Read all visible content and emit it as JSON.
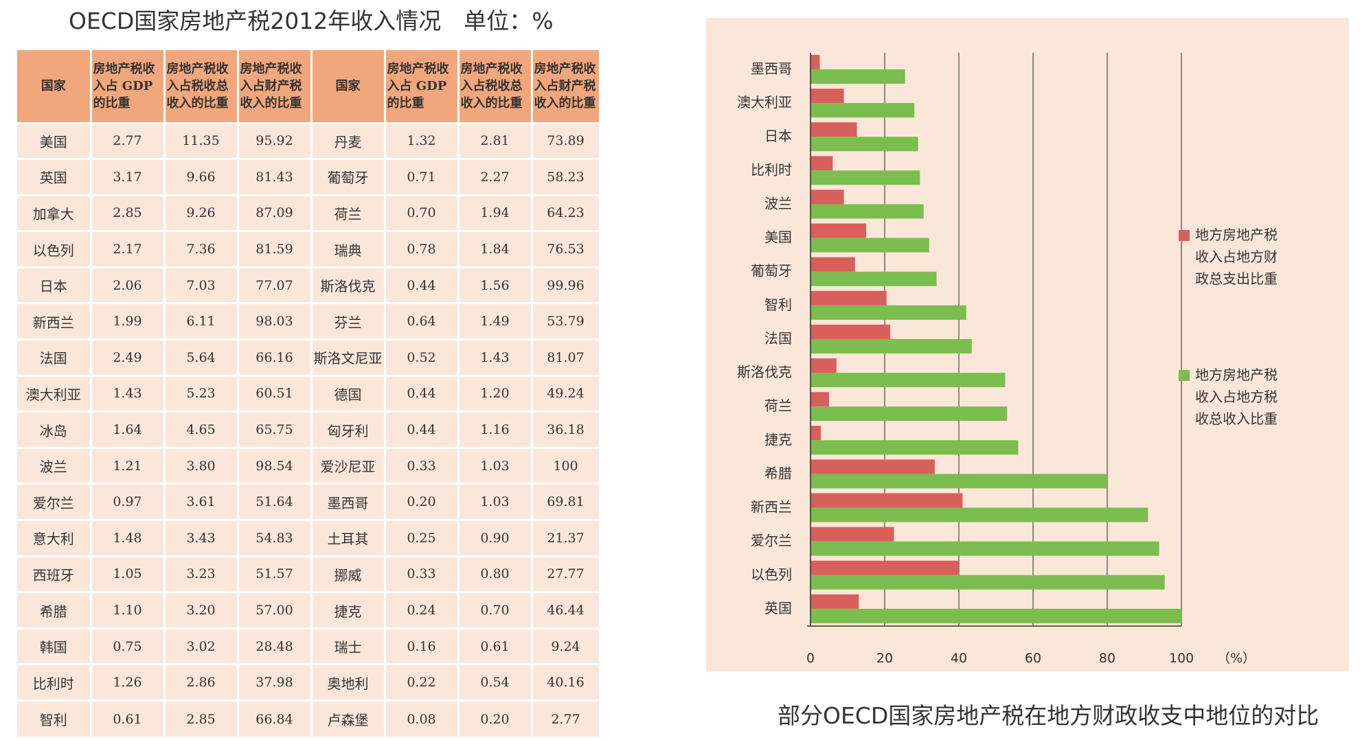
{
  "table": {
    "title": "OECD国家房地产税2012年收入情况　单位：%",
    "headers": [
      "国家",
      "房地产税收入占 GDP 的比重",
      "房地产税收入占税收总收入的比重",
      "房地产税收入占财产税收入的比重",
      "国家",
      "房地产税收入占 GDP 的比重",
      "房地产税收入占税收总收入的比重",
      "房地产税收入占财产税收入的比重"
    ],
    "header_lines": [
      [
        "国家"
      ],
      [
        "房地产税收",
        "入占 GDP",
        "的比重"
      ],
      [
        "房地产税收",
        "入占税收总",
        "收入的比重"
      ],
      [
        "房地产税收",
        "入占财产税",
        "收入的比重"
      ],
      [
        "国家"
      ],
      [
        "房地产税收",
        "入占 GDP",
        "的比重"
      ],
      [
        "房地产税收",
        "入占税收总",
        "收入的比重"
      ],
      [
        "房地产税收",
        "入占财产税",
        "收入的比重"
      ]
    ],
    "rows": [
      [
        "美国",
        "2.77",
        "11.35",
        "95.92",
        "丹麦",
        "1.32",
        "2.81",
        "73.89"
      ],
      [
        "英国",
        "3.17",
        "9.66",
        "81.43",
        "葡萄牙",
        "0.71",
        "2.27",
        "58.23"
      ],
      [
        "加拿大",
        "2.85",
        "9.26",
        "87.09",
        "荷兰",
        "0.70",
        "1.94",
        "64.23"
      ],
      [
        "以色列",
        "2.17",
        "7.36",
        "81.59",
        "瑞典",
        "0.78",
        "1.84",
        "76.53"
      ],
      [
        "日本",
        "2.06",
        "7.03",
        "77.07",
        "斯洛伐克",
        "0.44",
        "1.56",
        "99.96"
      ],
      [
        "新西兰",
        "1.99",
        "6.11",
        "98.03",
        "芬兰",
        "0.64",
        "1.49",
        "53.79"
      ],
      [
        "法国",
        "2.49",
        "5.64",
        "66.16",
        "斯洛文尼亚",
        "0.52",
        "1.43",
        "81.07"
      ],
      [
        "澳大利亚",
        "1.43",
        "5.23",
        "60.51",
        "德国",
        "0.44",
        "1.20",
        "49.24"
      ],
      [
        "冰岛",
        "1.64",
        "4.65",
        "65.75",
        "匈牙利",
        "0.44",
        "1.16",
        "36.18"
      ],
      [
        "波兰",
        "1.21",
        "3.80",
        "98.54",
        "爱沙尼亚",
        "0.33",
        "1.03",
        "100"
      ],
      [
        "爱尔兰",
        "0.97",
        "3.61",
        "51.64",
        "墨西哥",
        "0.20",
        "1.03",
        "69.81"
      ],
      [
        "意大利",
        "1.48",
        "3.43",
        "54.83",
        "土耳其",
        "0.25",
        "0.90",
        "21.37"
      ],
      [
        "西班牙",
        "1.05",
        "3.23",
        "51.57",
        "挪威",
        "0.33",
        "0.80",
        "27.77"
      ],
      [
        "希腊",
        "1.10",
        "3.20",
        "57.00",
        "捷克",
        "0.24",
        "0.70",
        "46.44"
      ],
      [
        "韩国",
        "0.75",
        "3.02",
        "28.48",
        "瑞士",
        "0.16",
        "0.61",
        "9.24"
      ],
      [
        "比利时",
        "1.26",
        "2.86",
        "37.98",
        "奥地利",
        "0.22",
        "0.54",
        "40.16"
      ],
      [
        "智利",
        "0.61",
        "2.85",
        "66.84",
        "卢森堡",
        "0.08",
        "0.20",
        "2.77"
      ]
    ]
  },
  "chart_data": {
    "type": "bar",
    "orientation": "horizontal",
    "title": "部分OECD国家房地产税在地方财政收支中地位的对比",
    "categories": [
      "墨西哥",
      "澳大利亚",
      "日本",
      "比利时",
      "波兰",
      "美国",
      "葡萄牙",
      "智利",
      "法国",
      "斯洛伐克",
      "荷兰",
      "捷克",
      "希腊",
      "新西兰",
      "爱尔兰",
      "以色列",
      "英国"
    ],
    "series": [
      {
        "name": "地方房地产税收入占地方财政总支出比重",
        "legend_lines": [
          "地方房地产税",
          "收入占地方财",
          "政总支出比重"
        ],
        "color": "#d95f5d",
        "values": [
          2.5,
          9,
          12.5,
          6,
          9,
          15,
          12,
          20.5,
          21.5,
          7,
          5,
          2.8,
          33.5,
          41,
          22.5,
          40,
          13
        ]
      },
      {
        "name": "地方房地产税收入占地方税收总收入比重",
        "legend_lines": [
          "地方房地产税",
          "收入占地方税",
          "收总收入比重"
        ],
        "color": "#7bbd4e",
        "values": [
          25.5,
          28,
          29,
          29.5,
          30.5,
          32,
          34,
          42,
          43.5,
          52.5,
          53,
          56,
          80,
          91,
          94,
          95.5,
          100
        ]
      }
    ],
    "xlim": [
      0,
      100
    ],
    "xticks": [
      "0",
      "20",
      "40",
      "60",
      "80",
      "100"
    ],
    "xunit": "（%）",
    "grid": true,
    "legend_position": "right"
  }
}
